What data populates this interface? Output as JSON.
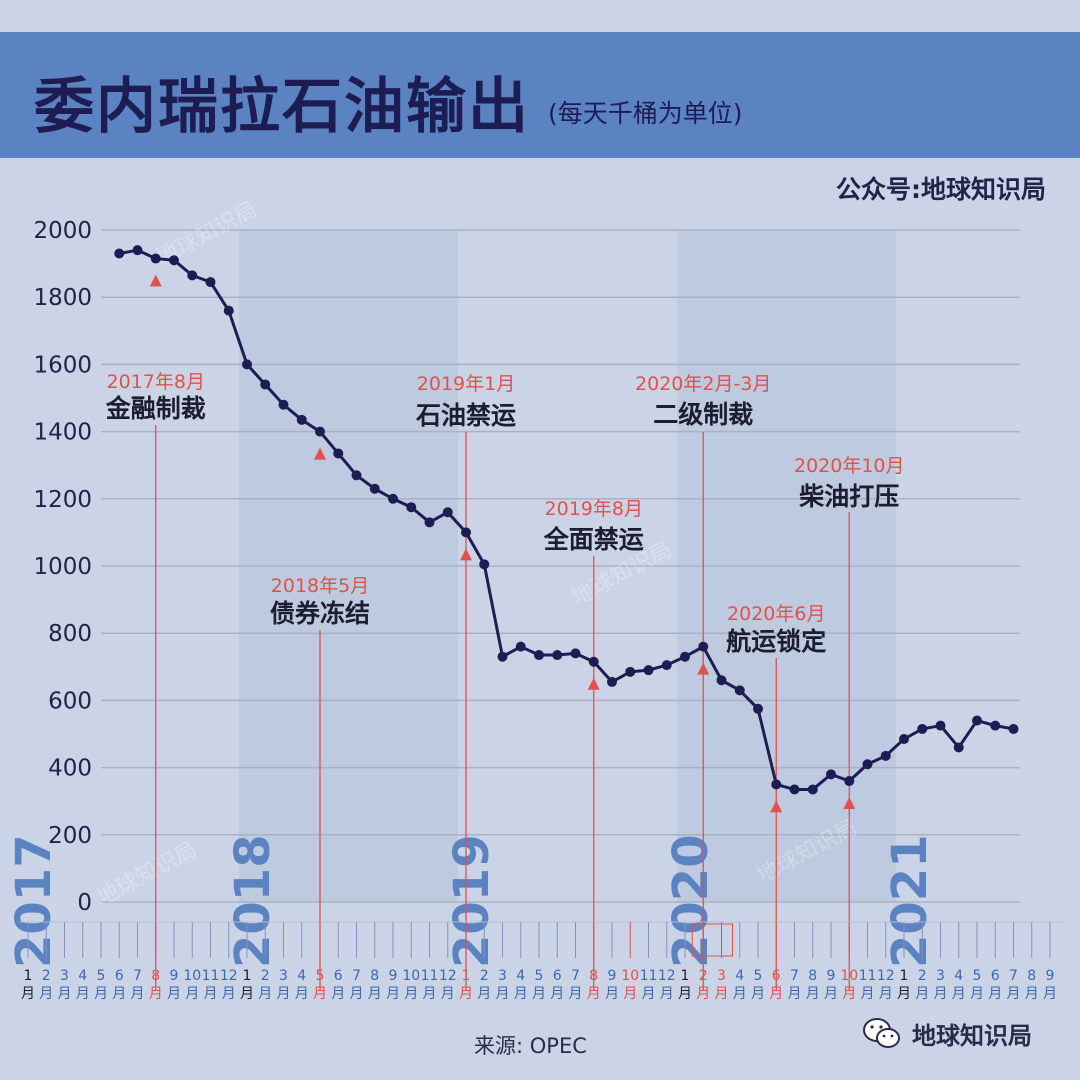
{
  "header": {
    "title": "委内瑞拉石油输出",
    "subtitle": "(每天千桶为单位)",
    "publisher": "公众号:地球知识局"
  },
  "footer": {
    "source": "来源: OPEC",
    "brand": "地球知识局"
  },
  "watermark": "地球知识局",
  "colors": {
    "header": "#5b83c2",
    "background": "#cbd4e6",
    "line": "#1d1d54",
    "annotation": "#e0524a",
    "year_label": "#5b83c2"
  },
  "chart_data": {
    "type": "line",
    "title": "委内瑞拉石油输出",
    "ylabel": "",
    "ylim": [
      0,
      2000
    ],
    "yticks": [
      0,
      200,
      400,
      600,
      800,
      1000,
      1200,
      1400,
      1600,
      1800,
      2000
    ],
    "grid": true,
    "years": [
      "2017",
      "2018",
      "2019",
      "2020",
      "2021"
    ],
    "month_label": "月",
    "month_ticks": [
      "1",
      "2",
      "3",
      "4",
      "5",
      "6",
      "7",
      "8",
      "9",
      "10",
      "11",
      "12",
      "1",
      "2",
      "3",
      "4",
      "5",
      "6",
      "7",
      "8",
      "9",
      "10",
      "11",
      "12",
      "1",
      "2",
      "3",
      "4",
      "5",
      "6",
      "7",
      "8",
      "9",
      "10",
      "11",
      "12",
      "1",
      "2",
      "3",
      "4",
      "5",
      "6",
      "7",
      "8",
      "9",
      "10",
      "11",
      "12",
      "1",
      "2",
      "3",
      "4",
      "5",
      "6",
      "7",
      "8",
      "9"
    ],
    "highlight_months": [
      7,
      16,
      24,
      31,
      33,
      37,
      38,
      41,
      45
    ],
    "year_start_months": [
      0,
      12,
      24,
      36,
      48
    ],
    "series": [
      {
        "values": [
          1930,
          1940,
          1915,
          1910,
          1865,
          1845,
          1760,
          1600,
          1540,
          1480,
          1435,
          1400,
          1335,
          1270,
          1230,
          1200,
          1175,
          1130,
          1160,
          1100,
          1005,
          730,
          760,
          735,
          735,
          740,
          715,
          655,
          685,
          690,
          705,
          730,
          760,
          660,
          630,
          575,
          350,
          335,
          335,
          380,
          360,
          410,
          435,
          485,
          515,
          525,
          460,
          540,
          525,
          515
        ]
      }
    ],
    "series_start_month": 5,
    "annotations": [
      {
        "date": "2017年8月",
        "event": "金融制裁",
        "month": 7
      },
      {
        "date": "2018年5月",
        "event": "债券冻结",
        "month": 16
      },
      {
        "date": "2019年1月",
        "event": "石油禁运",
        "month": 24
      },
      {
        "date": "2019年8月",
        "event": "全面禁运",
        "month": 31
      },
      {
        "date": "2020年2月-3月",
        "event": "二级制裁",
        "month": 37
      },
      {
        "date": "2020年6月",
        "event": "航运锁定",
        "month": 41
      },
      {
        "date": "2020年10月",
        "event": "柴油打压",
        "month": 45
      }
    ]
  }
}
